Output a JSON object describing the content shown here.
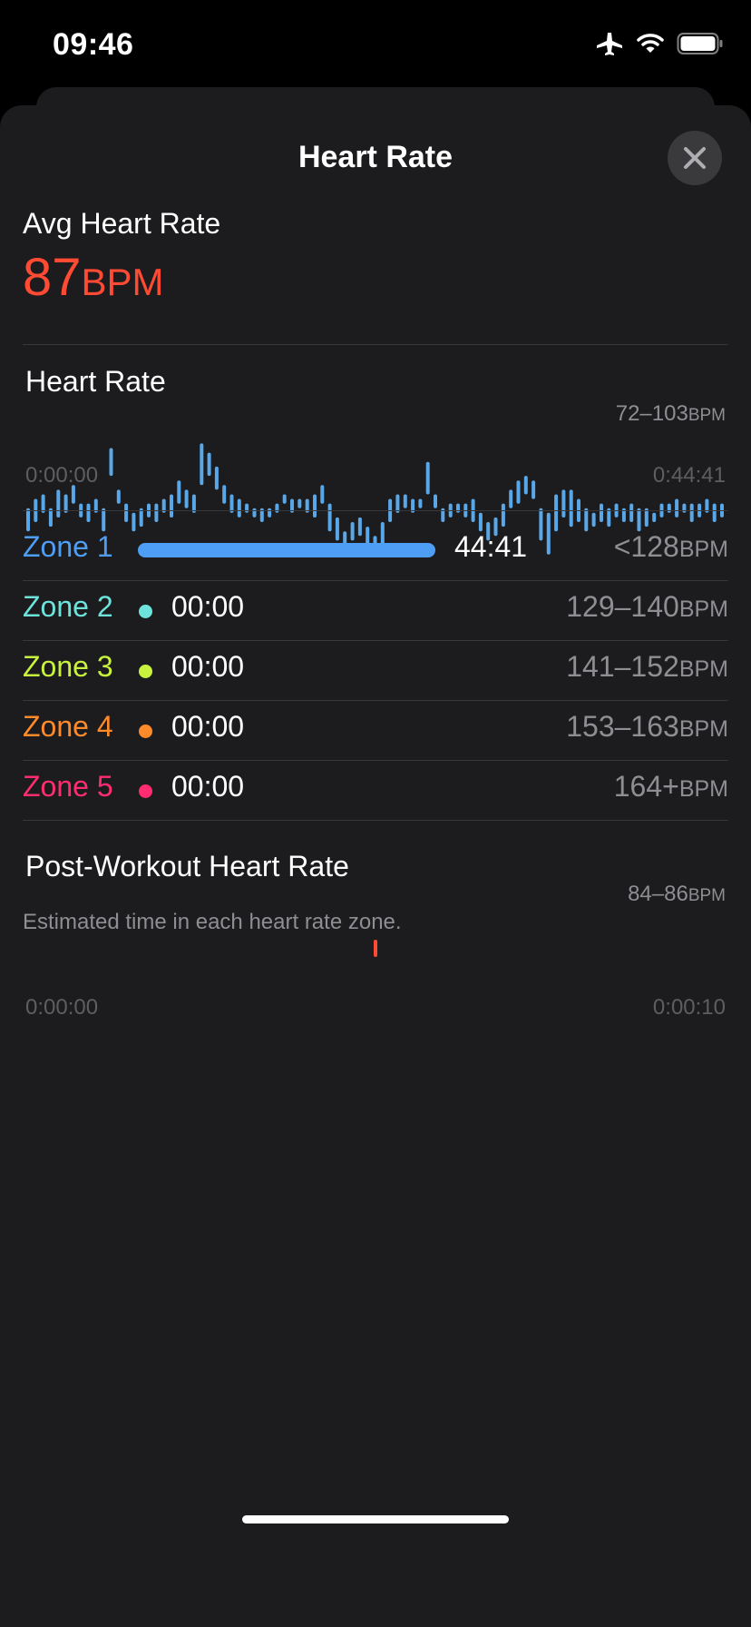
{
  "status_bar": {
    "time": "09:46",
    "icons": [
      "airplane-icon",
      "wifi-icon",
      "battery-icon"
    ]
  },
  "sheet": {
    "title": "Heart Rate",
    "close_icon": "close-icon"
  },
  "avg": {
    "label": "Avg Heart Rate",
    "value": "87",
    "unit": "BPM",
    "color": "#ff4a34"
  },
  "hr_section": {
    "title": "Heart Rate",
    "range_value": "72–103",
    "range_unit": "BPM",
    "start_label": "0:00:00",
    "end_label": "0:44:41"
  },
  "zones": [
    {
      "name": "Zone 1",
      "time": "44:41",
      "range_value": "<128",
      "unit": "BPM",
      "color": "#4f9ef5",
      "fraction": 1.0
    },
    {
      "name": "Zone 2",
      "time": "00:00",
      "range_value": "129–140",
      "unit": "BPM",
      "color": "#6ee3dc",
      "fraction": 0
    },
    {
      "name": "Zone 3",
      "time": "00:00",
      "range_value": "141–152",
      "unit": "BPM",
      "color": "#c8f23c",
      "fraction": 0
    },
    {
      "name": "Zone 4",
      "time": "00:00",
      "range_value": "153–163",
      "unit": "BPM",
      "color": "#ff8a2a",
      "fraction": 0
    },
    {
      "name": "Zone 5",
      "time": "00:00",
      "range_value": "164+",
      "unit": "BPM",
      "color": "#ff2d6f",
      "fraction": 0
    }
  ],
  "zones_note": "Estimated time in each heart rate zone.",
  "post_section": {
    "title": "Post-Workout Heart Rate",
    "range_value": "84–86",
    "range_unit": "BPM",
    "start_label": "0:00:00",
    "end_label": "0:00:10"
  },
  "chart_data": [
    {
      "type": "bar",
      "title": "Heart Rate",
      "ylim": [
        72,
        103
      ],
      "x_start": "0:00:00",
      "x_end": "0:44:41",
      "color": "#5aa7e8",
      "ranges": [
        [
          80,
          85
        ],
        [
          82,
          87
        ],
        [
          84,
          88
        ],
        [
          81,
          85
        ],
        [
          83,
          89
        ],
        [
          84,
          88
        ],
        [
          86,
          90
        ],
        [
          83,
          86
        ],
        [
          82,
          86
        ],
        [
          84,
          87
        ],
        [
          80,
          85
        ],
        [
          92,
          98
        ],
        [
          86,
          89
        ],
        [
          82,
          86
        ],
        [
          80,
          84
        ],
        [
          81,
          85
        ],
        [
          83,
          86
        ],
        [
          82,
          86
        ],
        [
          84,
          87
        ],
        [
          83,
          88
        ],
        [
          86,
          91
        ],
        [
          85,
          89
        ],
        [
          84,
          88
        ],
        [
          90,
          99
        ],
        [
          92,
          97
        ],
        [
          89,
          94
        ],
        [
          86,
          90
        ],
        [
          84,
          88
        ],
        [
          83,
          87
        ],
        [
          84,
          86
        ],
        [
          83,
          85
        ],
        [
          82,
          85
        ],
        [
          83,
          85
        ],
        [
          84,
          86
        ],
        [
          86,
          88
        ],
        [
          84,
          87
        ],
        [
          85,
          87
        ],
        [
          84,
          87
        ],
        [
          83,
          88
        ],
        [
          86,
          90
        ],
        [
          80,
          86
        ],
        [
          78,
          83
        ],
        [
          77,
          80
        ],
        [
          78,
          82
        ],
        [
          79,
          83
        ],
        [
          77,
          81
        ],
        [
          76,
          79
        ],
        [
          77,
          82
        ],
        [
          82,
          87
        ],
        [
          84,
          88
        ],
        [
          85,
          88
        ],
        [
          84,
          87
        ],
        [
          85,
          87
        ],
        [
          88,
          95
        ],
        [
          85,
          88
        ],
        [
          82,
          85
        ],
        [
          83,
          86
        ],
        [
          84,
          86
        ],
        [
          83,
          86
        ],
        [
          82,
          87
        ],
        [
          80,
          84
        ],
        [
          78,
          82
        ],
        [
          79,
          83
        ],
        [
          81,
          86
        ],
        [
          85,
          89
        ],
        [
          86,
          91
        ],
        [
          88,
          92
        ],
        [
          87,
          91
        ],
        [
          78,
          85
        ],
        [
          75,
          84
        ],
        [
          80,
          88
        ],
        [
          83,
          89
        ],
        [
          81,
          89
        ],
        [
          82,
          87
        ],
        [
          80,
          85
        ],
        [
          81,
          84
        ],
        [
          82,
          86
        ],
        [
          81,
          85
        ],
        [
          83,
          86
        ],
        [
          82,
          85
        ],
        [
          82,
          86
        ],
        [
          80,
          85
        ],
        [
          81,
          85
        ],
        [
          82,
          84
        ],
        [
          83,
          86
        ],
        [
          84,
          86
        ],
        [
          83,
          87
        ],
        [
          84,
          86
        ],
        [
          82,
          86
        ],
        [
          83,
          86
        ],
        [
          84,
          87
        ],
        [
          82,
          86
        ],
        [
          83,
          86
        ]
      ]
    },
    {
      "type": "bar",
      "title": "Post-Workout Heart Rate",
      "ylim": [
        84,
        86
      ],
      "x_start": "0:00:00",
      "x_end": "0:00:10",
      "color": "#ff4a34",
      "ranges": [
        [
          84,
          86
        ]
      ]
    }
  ]
}
